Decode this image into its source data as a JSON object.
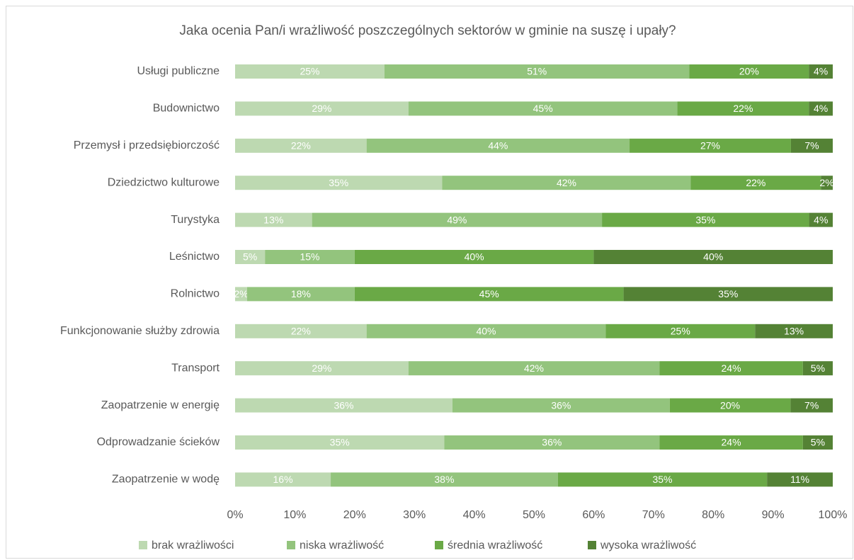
{
  "chart_data": {
    "type": "stacked100_barh",
    "title": "Jaka ocenia Pan/i wrażliwość  poszczególnych sektorów w gminie na suszę i upały?",
    "categories": [
      "Usługi publiczne",
      "Budownictwo",
      "Przemysł i przedsiębiorczość",
      "Dziedzictwo kulturowe",
      "Turystyka",
      "Leśnictwo",
      "Rolnictwo",
      "Funkcjonowanie służby zdrowia",
      "Transport",
      "Zaopatrzenie w energię",
      "Odprowadzanie ścieków",
      "Zaopatrzenie w wodę"
    ],
    "series": [
      {
        "name": "brak wrażliwości",
        "color": "#bdd9b1",
        "values": [
          25,
          29,
          22,
          35,
          13,
          5,
          2,
          22,
          29,
          36,
          35,
          16
        ],
        "value_labels": [
          "25%",
          "29%",
          "22%",
          "35%",
          "13%",
          "5%",
          "2%",
          "22%",
          "29%",
          "36%",
          "35%",
          "16%"
        ]
      },
      {
        "name": "niska wrażliwość",
        "color": "#93c47d",
        "values": [
          51,
          45,
          44,
          42,
          49,
          15,
          18,
          40,
          42,
          36,
          36,
          38
        ],
        "value_labels": [
          "51%",
          "45%",
          "44%",
          "42%",
          "49%",
          "15%",
          "18%",
          "40%",
          "42%",
          "36%",
          "36%",
          "38%"
        ]
      },
      {
        "name": "średnia wrażliwość",
        "color": "#6aa946",
        "values": [
          20,
          22,
          27,
          22,
          35,
          40,
          45,
          25,
          24,
          20,
          24,
          35
        ],
        "value_labels": [
          "20%",
          "22%",
          "27%",
          "22%",
          "35%",
          "40%",
          "45%",
          "25%",
          "24%",
          "20%",
          "24%",
          "35%"
        ]
      },
      {
        "name": "wysoka wrażliwość",
        "color": "#548235",
        "values": [
          4,
          4,
          7,
          2,
          4,
          40,
          35,
          13,
          5,
          7,
          5,
          11
        ],
        "value_labels": [
          "4%",
          "4%",
          "7%",
          "2%",
          "4%",
          "40%",
          "35%",
          "13%",
          "5%",
          "7%",
          "5%",
          "11%"
        ]
      }
    ],
    "xlim": [
      0,
      100
    ],
    "xticks": [
      {
        "value": 0,
        "label": "0%"
      },
      {
        "value": 10,
        "label": "10%"
      },
      {
        "value": 20,
        "label": "20%"
      },
      {
        "value": 30,
        "label": "30%"
      },
      {
        "value": 40,
        "label": "40%"
      },
      {
        "value": 50,
        "label": "50%"
      },
      {
        "value": 60,
        "label": "60%"
      },
      {
        "value": 70,
        "label": "70%"
      },
      {
        "value": 80,
        "label": "80%"
      },
      {
        "value": 90,
        "label": "90%"
      },
      {
        "value": 100,
        "label": "100%"
      }
    ],
    "legend": "bottom"
  }
}
